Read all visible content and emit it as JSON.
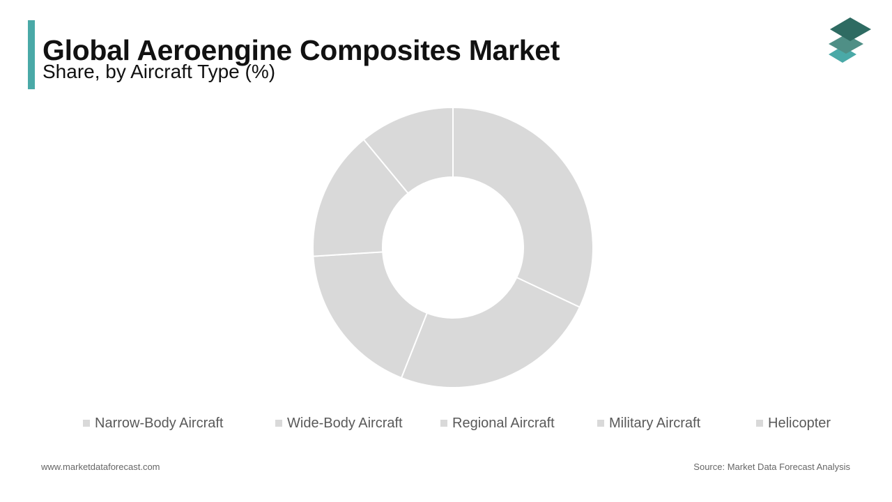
{
  "header": {
    "title": "Global Aeroengine Composites Market",
    "subtitle": "Share, by Aircraft Type (%)",
    "accent_color": "#4aa9a7"
  },
  "logo": {
    "icon": "stacked-layers-icon",
    "colors": [
      "#2e6b62",
      "#4f8f86",
      "#4aa9a7"
    ]
  },
  "chart_data": {
    "type": "pie",
    "style": "donut",
    "title": "",
    "categories": [
      "Narrow-Body Aircraft",
      "Wide-Body Aircraft",
      "Regional Aircraft",
      "Military Aircraft",
      "Helicopter"
    ],
    "values": [
      32,
      24,
      18,
      15,
      11
    ],
    "colors": [
      "#d9d9d9",
      "#d9d9d9",
      "#d9d9d9",
      "#d9d9d9",
      "#d9d9d9"
    ],
    "legend_position": "bottom"
  },
  "legend": {
    "items": [
      {
        "label": "Narrow-Body Aircraft",
        "color": "#d9d9d9"
      },
      {
        "label": "Wide-Body Aircraft",
        "color": "#d9d9d9"
      },
      {
        "label": "Regional Aircraft",
        "color": "#d9d9d9"
      },
      {
        "label": "Military Aircraft",
        "color": "#d9d9d9"
      },
      {
        "label": "Helicopter",
        "color": "#d9d9d9"
      }
    ]
  },
  "footer": {
    "website": "www.marketdataforecast.com",
    "source": "Source: Market Data Forecast Analysis"
  }
}
